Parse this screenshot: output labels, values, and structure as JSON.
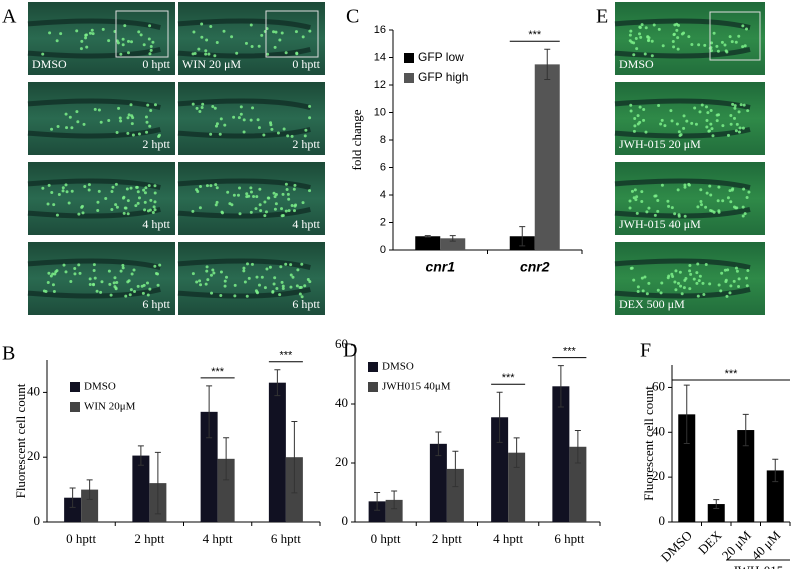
{
  "panel_labels": [
    "A",
    "B",
    "C",
    "D",
    "E",
    "F"
  ],
  "panel_a": {
    "images": [
      [
        "DMSO",
        "0 hptt"
      ],
      [
        "WIN 20 μM",
        "0 hptt"
      ],
      [
        "2 hptt"
      ],
      [
        "2 hptt"
      ],
      [
        "4 hptt"
      ],
      [
        "4 hptt"
      ],
      [
        "6 hptt"
      ],
      [
        "6 hptt"
      ]
    ]
  },
  "panel_e": {
    "images": [
      "DMSO",
      "JWH-015 20 μM",
      "JWH-015 40 μM",
      "DEX 500 μM"
    ]
  },
  "chart_data": [
    {
      "type": "bar",
      "y_label": "Fluorescent cell count",
      "categories": [
        "0 hptt",
        "2 hptt",
        "4 hptt",
        "6 hptt"
      ],
      "series": [
        {
          "name": "DMSO",
          "color": "#111122",
          "values": [
            7.5,
            20.5,
            34,
            43
          ],
          "errors": [
            3,
            3,
            8,
            4
          ]
        },
        {
          "name": "WIN 20μM",
          "color": "#444444",
          "values": [
            10,
            12,
            19.5,
            20
          ],
          "errors": [
            3,
            9.5,
            6.5,
            11
          ]
        }
      ],
      "significance": [
        null,
        null,
        "***",
        "***"
      ],
      "ylim": [
        0,
        50
      ],
      "yticks": [
        0,
        20,
        40
      ]
    },
    {
      "type": "bar",
      "y_label": "fold change",
      "categories": [
        "cnr1",
        "cnr2"
      ],
      "series": [
        {
          "name": "GFP low",
          "color": "#000000",
          "values": [
            1,
            1
          ],
          "errors": [
            0.05,
            0.7
          ]
        },
        {
          "name": "GFP high",
          "color": "#555555",
          "values": [
            0.85,
            13.5
          ],
          "errors": [
            0.2,
            1.1
          ]
        }
      ],
      "significance": [
        null,
        "***"
      ],
      "ylim": [
        0,
        16
      ],
      "yticks": [
        0,
        2,
        4,
        6,
        8,
        10,
        12,
        14,
        16
      ]
    },
    {
      "type": "bar",
      "categories": [
        "0 hptt",
        "2 hptt",
        "4 hptt",
        "6 hptt"
      ],
      "series": [
        {
          "name": "DMSO",
          "color": "#111122",
          "values": [
            7,
            26.5,
            35.5,
            46
          ],
          "errors": [
            3,
            4,
            8.5,
            7
          ]
        },
        {
          "name": "JWH015 40μM",
          "color": "#444444",
          "values": [
            7.5,
            18,
            23.5,
            25.5
          ],
          "errors": [
            3,
            6,
            5,
            5.5
          ]
        }
      ],
      "significance": [
        null,
        null,
        "***",
        "***"
      ],
      "ylim": [
        0,
        60
      ],
      "yticks": [
        0,
        20,
        40,
        60
      ]
    },
    {
      "type": "bar",
      "y_label": "Fluorescent cell count",
      "categories": [
        "DMSO",
        "DEX",
        "20 μM",
        "40 μM"
      ],
      "series": [
        {
          "color": "#000000",
          "values": [
            48,
            8,
            41,
            23
          ],
          "errors": [
            13,
            2,
            7,
            5
          ]
        }
      ],
      "group_label": "JWH-015",
      "annotation": "***",
      "ylim": [
        0,
        70
      ],
      "yticks": [
        0,
        20,
        40,
        60
      ]
    }
  ]
}
